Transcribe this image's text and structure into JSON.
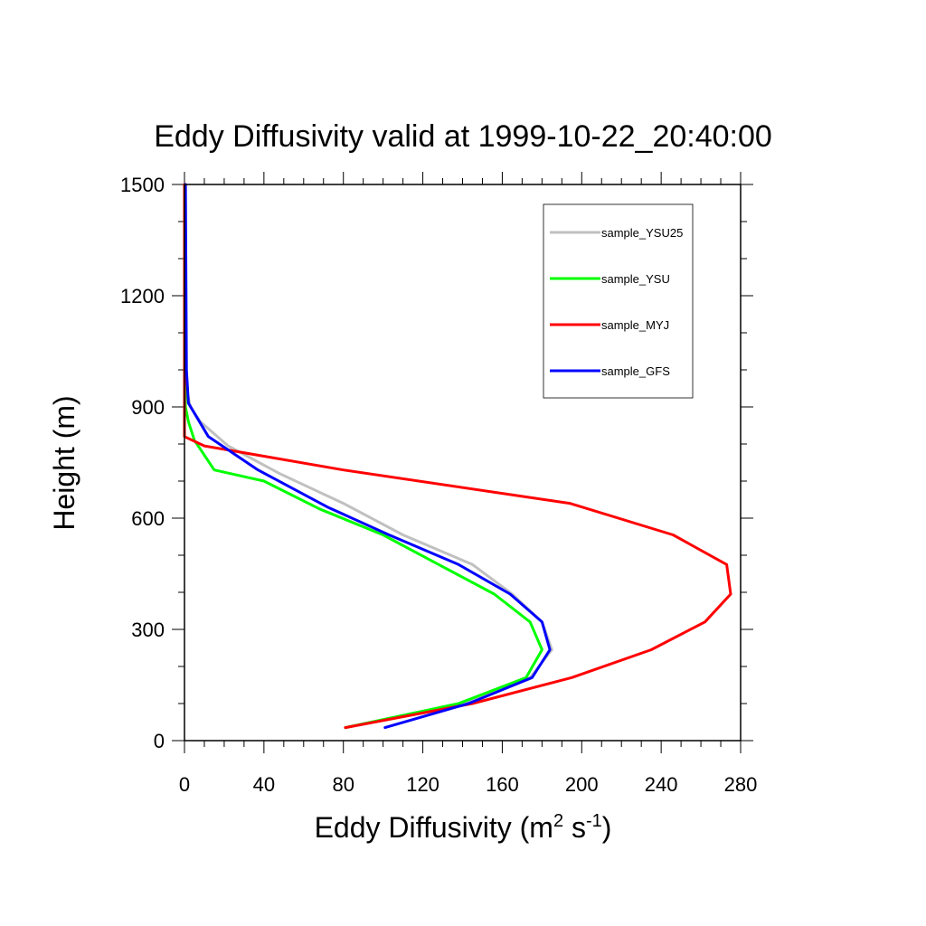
{
  "chart_data": {
    "type": "line",
    "title": "Eddy Diffusivity valid at 1999-10-22_20:40:00",
    "xlabel": {
      "base": "Eddy Diffusivity (m",
      "sup1": "2",
      "mid": " s",
      "sup2": "-1",
      "end": ")"
    },
    "ylabel": "Height (m)",
    "xlim": [
      0,
      280
    ],
    "ylim": [
      0,
      1500
    ],
    "xticks": [
      0,
      40,
      80,
      120,
      160,
      200,
      240,
      280
    ],
    "yticks": [
      0,
      300,
      600,
      900,
      1200,
      1500
    ],
    "grid": false,
    "legend_position": "top-right",
    "series": [
      {
        "name": "sample_YSU25",
        "color": "#c0c0c0",
        "points": [
          [
            81,
            35
          ],
          [
            140,
            100
          ],
          [
            174,
            170
          ],
          [
            185,
            245
          ],
          [
            180,
            320
          ],
          [
            165,
            395
          ],
          [
            145,
            475
          ],
          [
            110,
            555
          ],
          [
            80,
            640
          ],
          [
            48,
            720
          ],
          [
            22,
            795
          ],
          [
            8,
            860
          ],
          [
            3,
            900
          ],
          [
            1,
            950
          ],
          [
            0.5,
            1100
          ],
          [
            0.3,
            1500
          ]
        ]
      },
      {
        "name": "sample_YSU",
        "color": "#00ff00",
        "points": [
          [
            81,
            35
          ],
          [
            138,
            100
          ],
          [
            172,
            170
          ],
          [
            180,
            245
          ],
          [
            174,
            320
          ],
          [
            156,
            395
          ],
          [
            128,
            475
          ],
          [
            100,
            555
          ],
          [
            68,
            625
          ],
          [
            40,
            700
          ],
          [
            15,
            730
          ],
          [
            5,
            810
          ],
          [
            2,
            860
          ],
          [
            0.5,
            900
          ],
          [
            0.3,
            1000
          ],
          [
            0.2,
            1500
          ]
        ]
      },
      {
        "name": "sample_MYJ",
        "color": "#ff0000",
        "points": [
          [
            81,
            35
          ],
          [
            145,
            100
          ],
          [
            195,
            170
          ],
          [
            235,
            245
          ],
          [
            262,
            320
          ],
          [
            275,
            395
          ],
          [
            273,
            475
          ],
          [
            246,
            555
          ],
          [
            194,
            640
          ],
          [
            80,
            730
          ],
          [
            10,
            795
          ],
          [
            0,
            820
          ],
          [
            0,
            1500
          ]
        ]
      },
      {
        "name": "sample_GFS",
        "color": "#0000ff",
        "points": [
          [
            101,
            35
          ],
          [
            143,
            100
          ],
          [
            175,
            170
          ],
          [
            184,
            245
          ],
          [
            180,
            320
          ],
          [
            164,
            395
          ],
          [
            138,
            475
          ],
          [
            103,
            555
          ],
          [
            72,
            630
          ],
          [
            37,
            730
          ],
          [
            12,
            820
          ],
          [
            2,
            910
          ],
          [
            1,
            1000
          ],
          [
            0.5,
            1500
          ]
        ]
      }
    ]
  }
}
